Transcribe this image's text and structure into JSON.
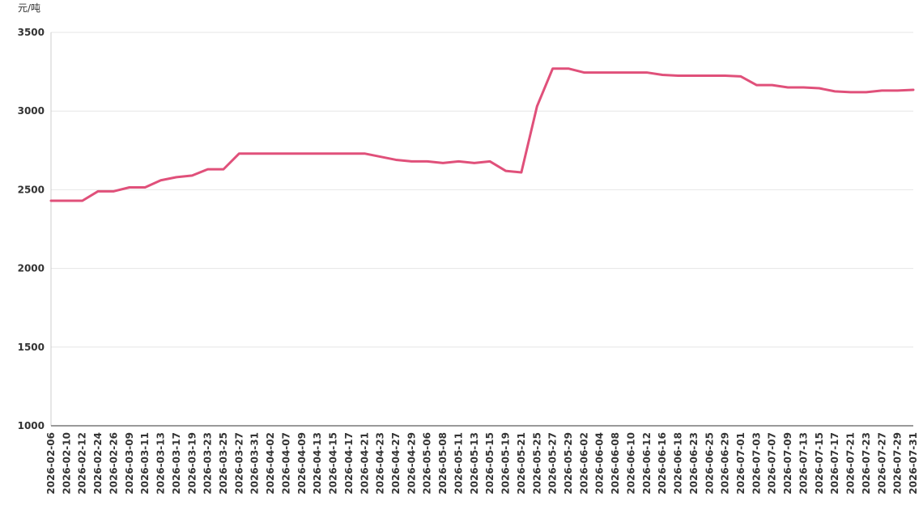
{
  "chart_data": {
    "type": "line",
    "y_label": "元/吨",
    "categories": [
      "2026-02-06",
      "2026-02-10",
      "2026-02-12",
      "2026-02-24",
      "2026-02-26",
      "2026-03-09",
      "2026-03-11",
      "2026-03-13",
      "2026-03-17",
      "2026-03-19",
      "2026-03-23",
      "2026-03-25",
      "2026-03-27",
      "2026-03-31",
      "2026-04-02",
      "2026-04-07",
      "2026-04-09",
      "2026-04-13",
      "2026-04-15",
      "2026-04-17",
      "2026-04-21",
      "2026-04-23",
      "2026-04-27",
      "2026-04-29",
      "2026-05-06",
      "2026-05-08",
      "2026-05-11",
      "2026-05-13",
      "2026-05-15",
      "2026-05-19",
      "2026-05-21",
      "2026-05-25",
      "2026-05-27",
      "2026-05-29",
      "2026-06-02",
      "2026-06-04",
      "2026-06-08",
      "2026-06-10",
      "2026-06-12",
      "2026-06-16",
      "2026-06-18",
      "2026-06-23",
      "2026-06-25",
      "2026-06-29",
      "2026-07-01",
      "2026-07-03",
      "2026-07-07",
      "2026-07-09",
      "2026-07-13",
      "2026-07-15",
      "2026-07-17",
      "2026-07-21",
      "2026-07-23",
      "2026-07-27",
      "2026-07-29",
      "2026-07-31"
    ],
    "series": [
      {
        "color": "#e0507a",
        "values": [
          2430,
          2430,
          2430,
          2490,
          2490,
          2515,
          2515,
          2560,
          2580,
          2590,
          2630,
          2630,
          2730,
          2730,
          2730,
          2730,
          2730,
          2730,
          2730,
          2730,
          2730,
          2710,
          2690,
          2680,
          2680,
          2670,
          2680,
          2670,
          2680,
          2620,
          2610,
          3030,
          3270,
          3270,
          3245,
          3245,
          3245,
          3245,
          3245,
          3230,
          3225,
          3225,
          3225,
          3225,
          3220,
          3165,
          3165,
          3150,
          3150,
          3145,
          3125,
          3120,
          3120,
          3130,
          3130,
          3135
        ]
      }
    ],
    "ylim": [
      1000,
      3500
    ],
    "yticks": [
      1000,
      1500,
      2000,
      2500,
      3000,
      3500
    ],
    "grid": true
  }
}
